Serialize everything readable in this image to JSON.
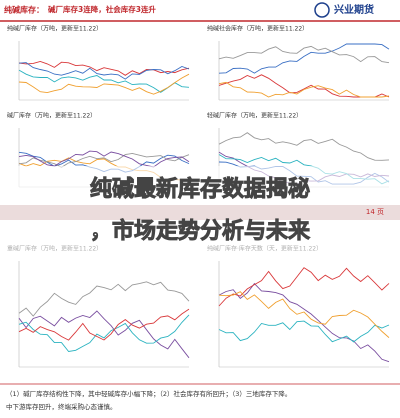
{
  "header": {
    "title": "纯碱库存：",
    "subtitle": "碱厂库存3连降，社会库存3连升",
    "logo": "兴业期货"
  },
  "panels": [
    {
      "title": "纯碱厂库存（万吨，更新至11.22）"
    },
    {
      "title": "纯碱社会库存（万吨，更新至11.22）"
    },
    {
      "title": "碱厂库存（万吨，更新至11.22）"
    },
    {
      "title": "轻碱厂库存（万吨，更新至11.22）"
    },
    {
      "title": "重碱厂库存（万吨，更新至11.22）"
    },
    {
      "title": "纯碱厂库存·库存天数（天，更新至11.22）"
    }
  ],
  "overlay": {
    "line1": "纯碱最新库存数据揭秘",
    "line2": "，市场走势分析与未来"
  },
  "page_label": "14 页",
  "notes": [
    "（1）碱厂库存结构性下降，其中轻碱库存小幅下降；（2）社会库存有所回升；（3）三地库存下降。",
    "中下游库存回升，终端采购心态谨慎。"
  ]
}
